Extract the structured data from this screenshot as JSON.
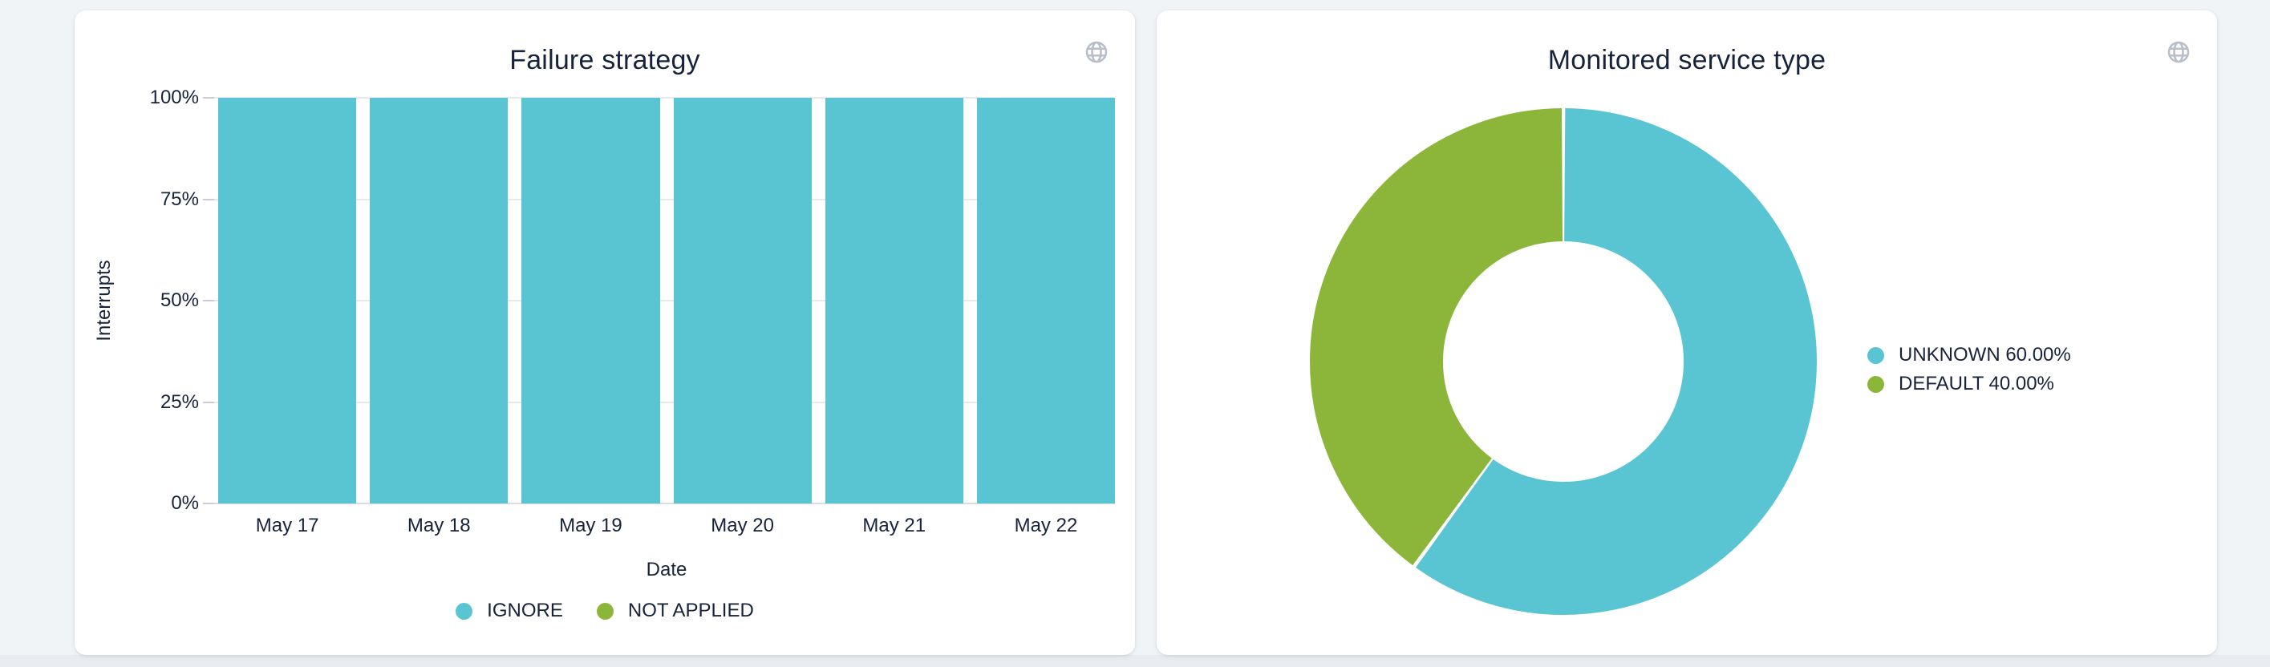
{
  "chart_data": [
    {
      "type": "bar",
      "title": "Failure strategy",
      "xlabel": "Date",
      "ylabel": "Interrupts",
      "categories": [
        "May 17",
        "May 18",
        "May 19",
        "May 20",
        "May 21",
        "May 22"
      ],
      "series": [
        {
          "name": "IGNORE",
          "color": "#59c4d2",
          "values": [
            100,
            100,
            100,
            100,
            100,
            100
          ]
        },
        {
          "name": "NOT APPLIED",
          "color": "#8cb63a",
          "values": [
            0,
            0,
            0,
            0,
            0,
            0
          ]
        }
      ],
      "yticks": [
        {
          "label": "0%",
          "value": 0
        },
        {
          "label": "25%",
          "value": 25
        },
        {
          "label": "50%",
          "value": 50
        },
        {
          "label": "75%",
          "value": 75
        },
        {
          "label": "100%",
          "value": 100
        }
      ],
      "ylim": [
        0,
        100
      ],
      "unit": "%",
      "grid": true,
      "legend_position": "bottom"
    },
    {
      "type": "pie",
      "donut": true,
      "title": "Monitored service type",
      "slices": [
        {
          "label": "UNKNOWN",
          "value": 60.0,
          "display": "UNKNOWN 60.00%",
          "color": "#59c4d2"
        },
        {
          "label": "DEFAULT",
          "value": 40.0,
          "display": "DEFAULT 40.00%",
          "color": "#8cb63a"
        }
      ],
      "start_angle": "12-oclock",
      "direction": "clockwise",
      "legend_position": "right"
    }
  ],
  "icons": {
    "card_action": "globe-icon"
  },
  "colors": {
    "teal": "#59c4d2",
    "green": "#8cb63a",
    "text": "#17223b",
    "card_bg": "#ffffff",
    "page_bg": "#f1f4f7",
    "grid_line": "#e8e9ed",
    "axis_line": "#d9dce4",
    "icon_gray": "#b8bec9"
  }
}
